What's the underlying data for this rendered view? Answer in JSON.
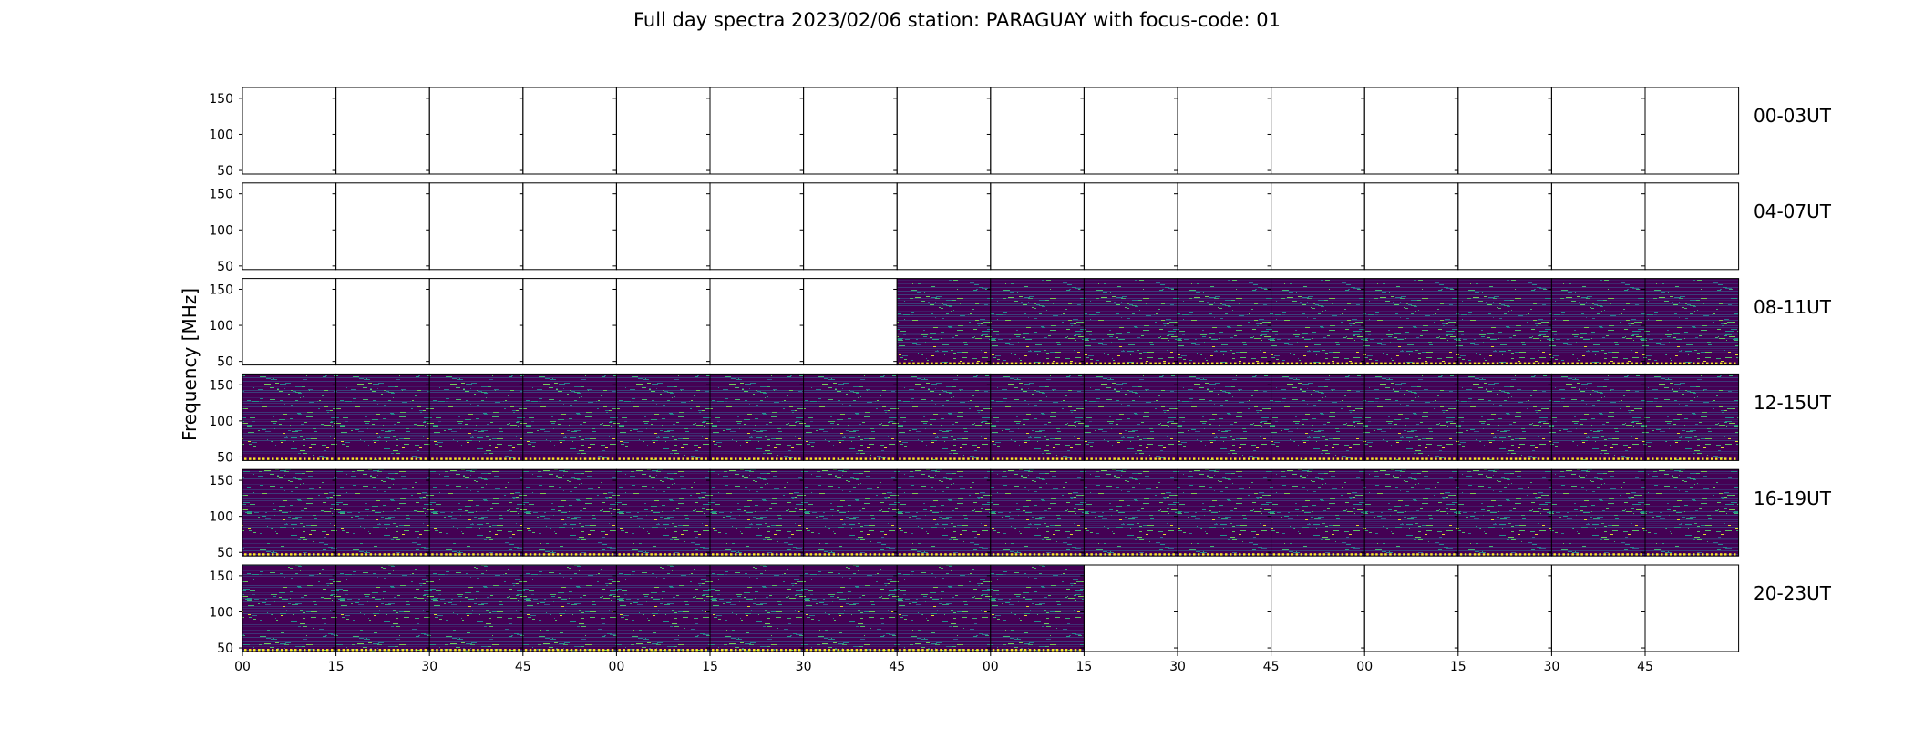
{
  "chart_data": {
    "type": "heatmap",
    "title": "Full day spectra 2023/02/06 station: PARAGUAY with focus-code: 01",
    "ylabel": "Frequency [MHz]",
    "ylim": [
      45,
      165
    ],
    "y_ticks": [
      "50",
      "100",
      "150"
    ],
    "x_ticks": [
      "00",
      "15",
      "30",
      "45",
      "00",
      "15",
      "30",
      "45",
      "00",
      "15",
      "30",
      "45",
      "00",
      "15",
      "30",
      "45"
    ],
    "colormap": "viridis",
    "background_color": "#440154",
    "rows": [
      {
        "label": "00-03UT",
        "data_panels": []
      },
      {
        "label": "04-07UT",
        "data_panels": []
      },
      {
        "label": "08-11UT",
        "data_panels": [
          7,
          8,
          9,
          10,
          11,
          12,
          13,
          14,
          15
        ]
      },
      {
        "label": "12-15UT",
        "data_panels": [
          0,
          1,
          2,
          3,
          4,
          5,
          6,
          7,
          8,
          9,
          10,
          11,
          12,
          13,
          14,
          15
        ]
      },
      {
        "label": "16-19UT",
        "data_panels": [
          0,
          1,
          2,
          3,
          4,
          5,
          6,
          7,
          8,
          9,
          10,
          11,
          12,
          13,
          14,
          15
        ]
      },
      {
        "label": "20-23UT",
        "data_panels": [
          0,
          1,
          2,
          3,
          4,
          5,
          6,
          7,
          8
        ]
      }
    ]
  }
}
